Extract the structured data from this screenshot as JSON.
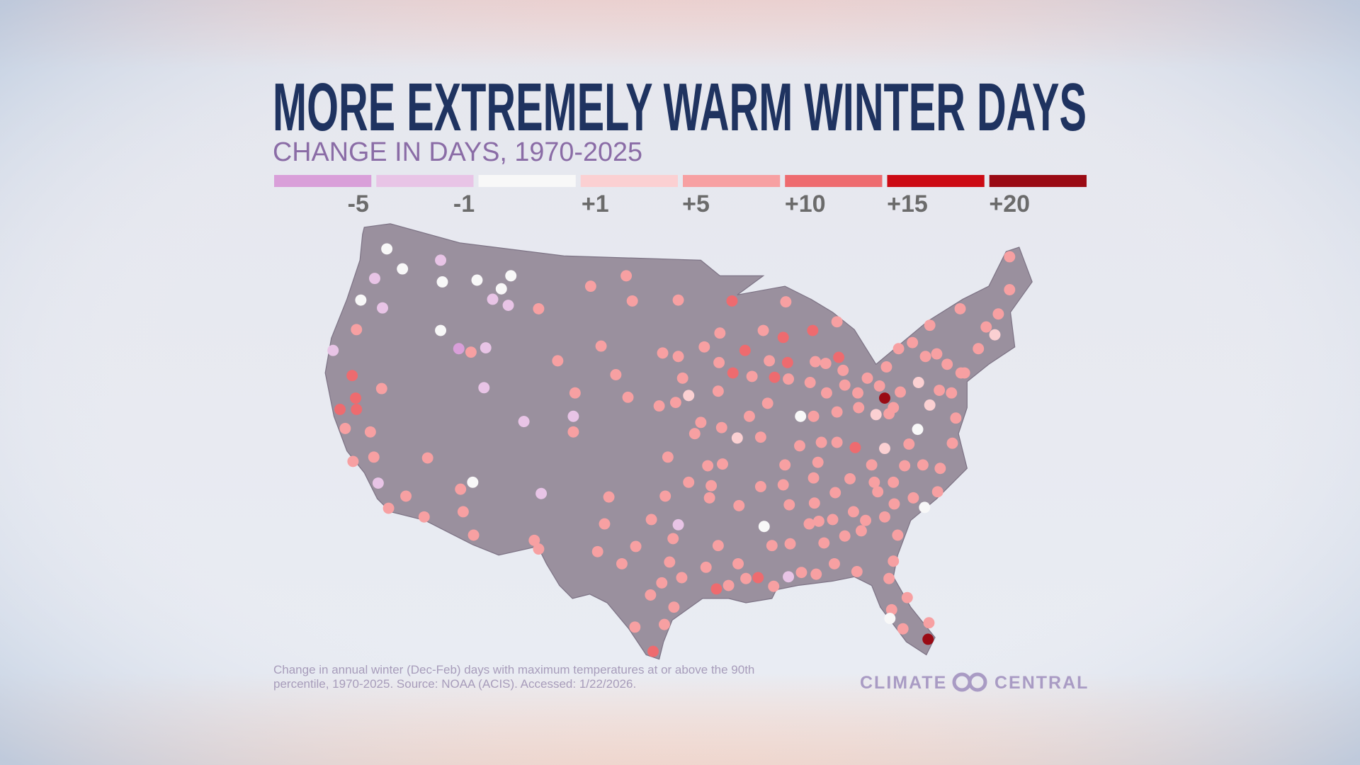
{
  "header": {
    "title": "MORE EXTREMELY WARM WINTER DAYS",
    "subtitle": "CHANGE IN DAYS, 1970-2025"
  },
  "legend": {
    "colors": [
      "#d99fd9",
      "#e8c4e6",
      "#f8f8f8",
      "#fbd0d2",
      "#f7a0a2",
      "#ee6b6f",
      "#cc0a14",
      "#9a0a14"
    ],
    "labels": [
      "-5",
      "-1",
      "+1",
      "+5",
      "+10",
      "+15",
      "+20"
    ]
  },
  "footer": {
    "note_line1": "Change in annual winter (Dec-Feb) days with maximum temperatures at or above the 90th",
    "note_line2": "percentile, 1970-2025. Source: NOAA (ACIS). Accessed: 1/22/2026.",
    "logo_left": "CLIMATE",
    "logo_right": "CENTRAL"
  }
}
